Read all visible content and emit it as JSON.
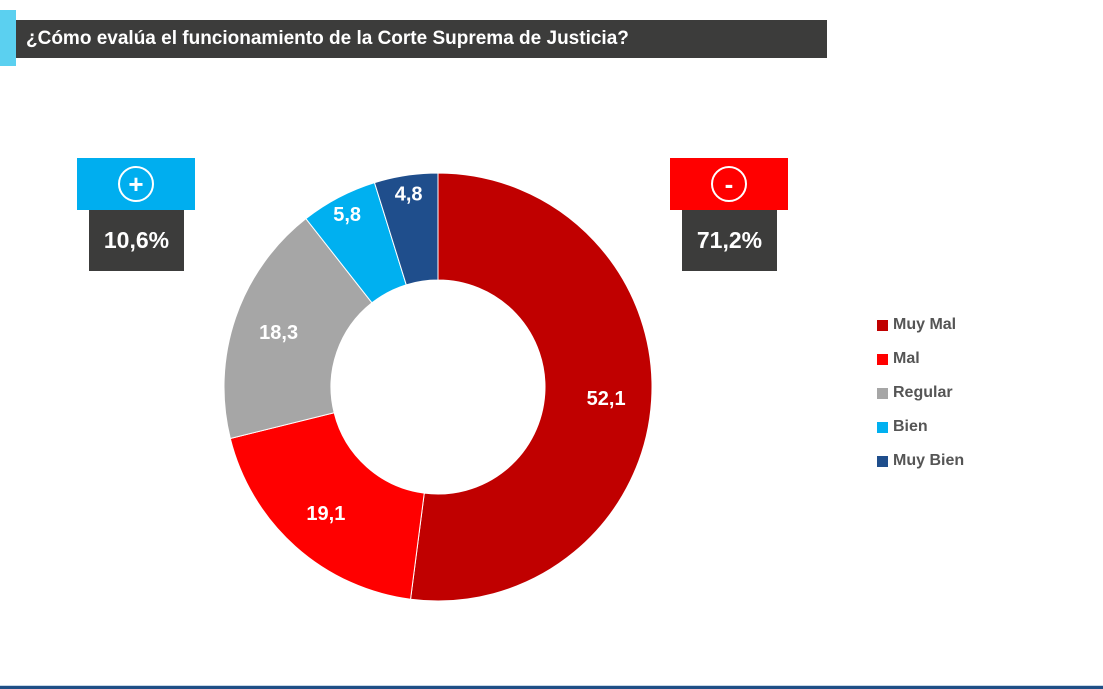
{
  "title": "¿Cómo evalúa el funcionamiento de la Corte Suprema de Justicia?",
  "positive": {
    "symbol": "+",
    "value": "10,6%",
    "color": "#00aeef"
  },
  "negative": {
    "symbol": "-",
    "value": "71,2%",
    "color": "#ff0000"
  },
  "chart_data": {
    "type": "pie",
    "donut": true,
    "title": "¿Cómo evalúa el funcionamiento de la Corte Suprema de Justicia?",
    "categories": [
      "Muy Mal",
      "Mal",
      "Regular",
      "Bien",
      "Muy Bien"
    ],
    "values": [
      52.1,
      19.1,
      18.3,
      5.8,
      4.8
    ],
    "labels": [
      "52,1",
      "19,1",
      "18,3",
      "5,8",
      "4,8"
    ],
    "colors": [
      "#c00000",
      "#ff0000",
      "#a6a6a6",
      "#00b0f0",
      "#1f4e8c"
    ],
    "legend": "right"
  }
}
